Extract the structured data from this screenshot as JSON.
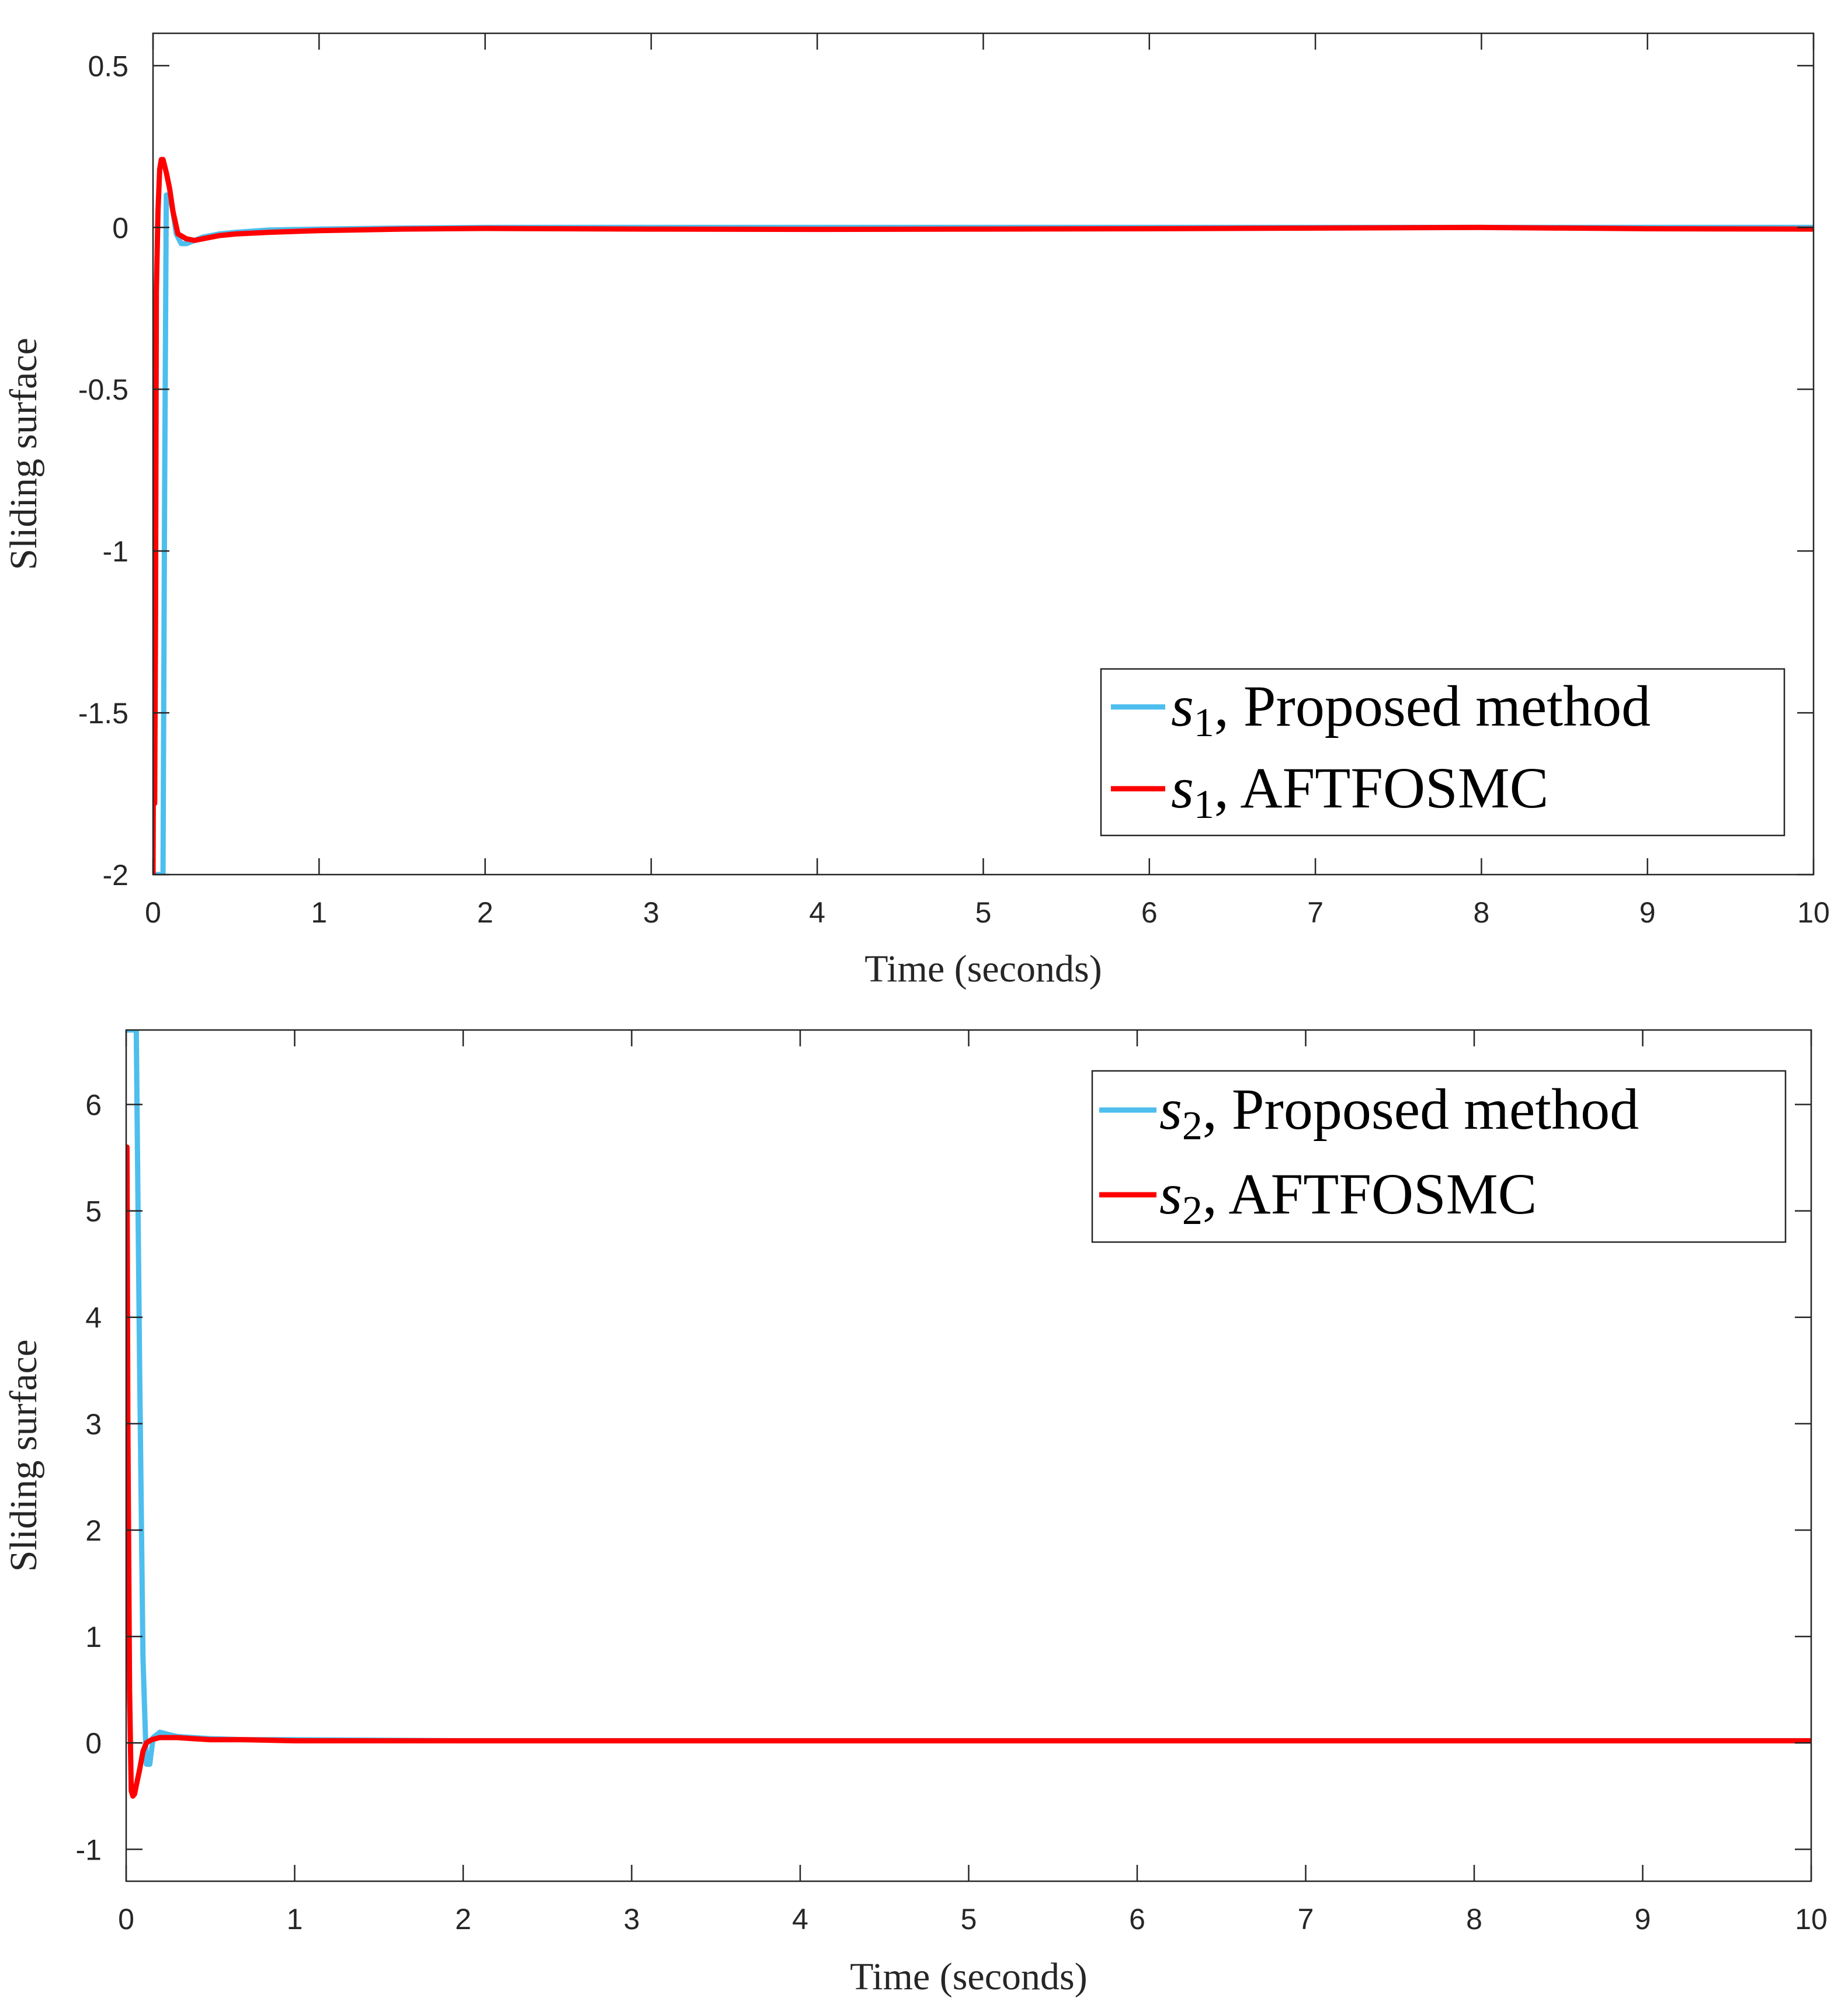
{
  "colors": {
    "proposed": "#4DBEEE",
    "aftfosmc": "#FF0000",
    "axes": "#262626"
  },
  "chart_data": [
    {
      "type": "line",
      "xlabel": "Time (seconds)",
      "ylabel": "Sliding surface",
      "xlim": [
        0,
        10
      ],
      "ylim": [
        -2,
        0.6
      ],
      "xticks": [
        "0",
        "1",
        "2",
        "3",
        "4",
        "5",
        "6",
        "7",
        "8",
        "9",
        "10"
      ],
      "yticks": [
        "-2",
        "-1.5",
        "-1",
        "-0.5",
        "0",
        "0.5"
      ],
      "ytick_values": [
        -2,
        -1.5,
        -1,
        -0.5,
        0,
        0.5
      ],
      "grid": false,
      "legend_position": "bottom-right",
      "legend_entries": [
        {
          "var": "s",
          "sub": "1",
          "text": ", Proposed method"
        },
        {
          "var": "s",
          "sub": "1",
          "text": ", AFTFOSMC"
        }
      ],
      "series": [
        {
          "name": "s1, Proposed method",
          "color": "#4DBEEE",
          "x": [
            0.0,
            0.01,
            0.02,
            0.03,
            0.04,
            0.05,
            0.06,
            0.07,
            0.08,
            0.1,
            0.12,
            0.14,
            0.17,
            0.2,
            0.25,
            0.3,
            0.4,
            0.5,
            0.7,
            1.0,
            1.5,
            2.0,
            3.0,
            4.0,
            5.0,
            6.0,
            7.0,
            8.0,
            9.0,
            10.0
          ],
          "values": [
            -2.0,
            -2.0,
            -2.0,
            -2.0,
            -2.0,
            -2.0,
            -2.0,
            -0.8,
            0.1,
            0.1,
            0.05,
            -0.02,
            -0.05,
            -0.05,
            -0.04,
            -0.03,
            -0.02,
            -0.015,
            -0.008,
            -0.005,
            -0.002,
            0.0,
            0.0,
            0.0,
            0.0,
            0.0,
            0.0,
            0.0,
            0.0,
            0.0
          ]
        },
        {
          "name": "s1, AFTFOSMC",
          "color": "#FF0000",
          "x": [
            0.0,
            0.005,
            0.01,
            0.015,
            0.02,
            0.03,
            0.04,
            0.05,
            0.06,
            0.08,
            0.1,
            0.12,
            0.15,
            0.2,
            0.25,
            0.3,
            0.4,
            0.5,
            0.7,
            1.0,
            1.5,
            2.0,
            3.0,
            4.0,
            5.0,
            6.0,
            7.0,
            8.0,
            9.0,
            10.0
          ],
          "values": [
            -2.0,
            -1.27,
            -1.78,
            -1.2,
            -0.2,
            0.05,
            0.18,
            0.21,
            0.21,
            0.17,
            0.12,
            0.05,
            -0.02,
            -0.035,
            -0.04,
            -0.035,
            -0.025,
            -0.02,
            -0.015,
            -0.01,
            -0.005,
            -0.003,
            -0.005,
            -0.006,
            -0.005,
            -0.004,
            -0.002,
            0.0,
            -0.004,
            -0.005
          ]
        }
      ]
    },
    {
      "type": "line",
      "xlabel": "Time (seconds)",
      "ylabel": "Sliding surface",
      "xlim": [
        0,
        10
      ],
      "ylim": [
        -1.3,
        6.7
      ],
      "xticks": [
        "0",
        "1",
        "2",
        "3",
        "4",
        "5",
        "6",
        "7",
        "8",
        "9",
        "10"
      ],
      "yticks": [
        "-1",
        "0",
        "1",
        "2",
        "3",
        "4",
        "5",
        "6"
      ],
      "ytick_values": [
        -1,
        0,
        1,
        2,
        3,
        4,
        5,
        6
      ],
      "grid": false,
      "legend_position": "top-right",
      "legend_entries": [
        {
          "var": "s",
          "sub": "2",
          "text": ", Proposed method"
        },
        {
          "var": "s",
          "sub": "2",
          "text": ", AFTFOSMC"
        }
      ],
      "series": [
        {
          "name": "s2, Proposed method",
          "color": "#4DBEEE",
          "x": [
            0.0,
            0.02,
            0.04,
            0.06,
            0.08,
            0.1,
            0.12,
            0.14,
            0.16,
            0.2,
            0.25,
            0.3,
            0.4,
            0.5,
            0.7,
            1.0,
            2.0,
            3.0,
            4.0,
            5.0,
            6.0,
            7.0,
            8.0,
            9.0,
            10.0
          ],
          "values": [
            6.7,
            6.7,
            6.7,
            6.7,
            3.5,
            0.8,
            -0.2,
            -0.2,
            0.05,
            0.1,
            0.08,
            0.06,
            0.05,
            0.04,
            0.03,
            0.03,
            0.02,
            0.02,
            0.02,
            0.02,
            0.02,
            0.02,
            0.02,
            0.02,
            0.02
          ]
        },
        {
          "name": "s2, AFTFOSMC",
          "color": "#FF0000",
          "x": [
            0.0,
            0.005,
            0.01,
            0.02,
            0.03,
            0.04,
            0.05,
            0.06,
            0.08,
            0.1,
            0.12,
            0.15,
            0.2,
            0.25,
            0.3,
            0.4,
            0.5,
            0.7,
            1.0,
            2.0,
            3.0,
            4.0,
            5.0,
            6.0,
            7.0,
            8.0,
            9.0,
            10.0
          ],
          "values": [
            3.3,
            5.6,
            3.0,
            0.5,
            -0.45,
            -0.5,
            -0.48,
            -0.4,
            -0.25,
            -0.08,
            0.0,
            0.03,
            0.05,
            0.05,
            0.05,
            0.04,
            0.03,
            0.03,
            0.02,
            0.02,
            0.02,
            0.02,
            0.02,
            0.02,
            0.02,
            0.02,
            0.02,
            0.02
          ]
        }
      ]
    }
  ]
}
